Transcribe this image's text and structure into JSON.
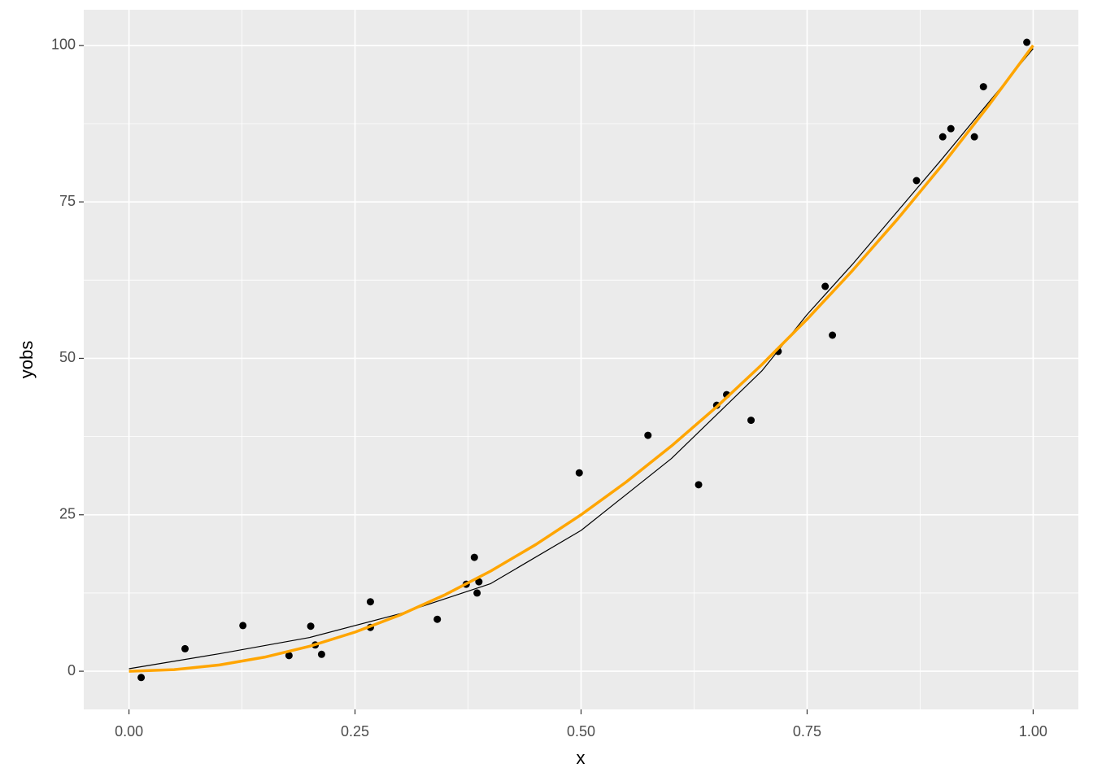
{
  "chart_data": {
    "type": "scatter",
    "x_label": "x",
    "y_label": "yobs",
    "xlim": [
      -0.05,
      1.05
    ],
    "ylim": [
      -6.1,
      105.7
    ],
    "xticks": [
      {
        "value": 0,
        "label": "0.00"
      },
      {
        "value": 0.25,
        "label": "0.25"
      },
      {
        "value": 0.5,
        "label": "0.50"
      },
      {
        "value": 0.75,
        "label": "0.75"
      },
      {
        "value": 1,
        "label": "1.00"
      }
    ],
    "yticks": [
      0,
      25,
      50,
      75,
      100
    ],
    "grid": true,
    "points": {
      "color": "#000000",
      "x": [
        0.0135,
        0.062,
        0.126,
        0.177,
        0.201,
        0.206,
        0.213,
        0.267,
        0.267,
        0.341,
        0.373,
        0.382,
        0.385,
        0.387,
        0.498,
        0.574,
        0.63,
        0.65,
        0.661,
        0.688,
        0.718,
        0.77,
        0.778,
        0.871,
        0.9,
        0.909,
        0.935,
        0.945,
        0.993
      ],
      "values": [
        -1.0,
        3.6,
        7.3,
        2.5,
        7.2,
        4.2,
        2.7,
        11.1,
        7.0,
        8.3,
        13.9,
        18.2,
        12.5,
        14.3,
        31.7,
        37.7,
        29.8,
        42.5,
        44.2,
        40.1,
        51.1,
        61.5,
        53.7,
        78.4,
        85.4,
        86.7,
        85.4,
        93.4,
        100.5
      ]
    },
    "lines": [
      {
        "color": "#000000",
        "width": 1.2,
        "x": [
          0,
          0.1,
          0.2,
          0.3,
          0.4,
          0.5,
          0.6,
          0.7,
          0.75,
          0.8,
          0.9,
          1.0
        ],
        "values": [
          0.4,
          2.8,
          5.4,
          9.2,
          14.0,
          22.5,
          34.0,
          48.0,
          57.0,
          65.0,
          82.0,
          99.5
        ]
      },
      {
        "color": "#FFA500",
        "width": 3.5,
        "x": [
          0,
          0.05,
          0.1,
          0.15,
          0.2,
          0.25,
          0.3,
          0.35,
          0.4,
          0.45,
          0.5,
          0.55,
          0.6,
          0.65,
          0.7,
          0.75,
          0.8,
          0.85,
          0.9,
          0.95,
          1.0
        ],
        "values": [
          0,
          0.25,
          1,
          2.25,
          4,
          6.25,
          9,
          12.25,
          16,
          20.25,
          25,
          30.25,
          36,
          42.25,
          49,
          56.25,
          64,
          72.25,
          81,
          90.25,
          100
        ]
      }
    ]
  }
}
